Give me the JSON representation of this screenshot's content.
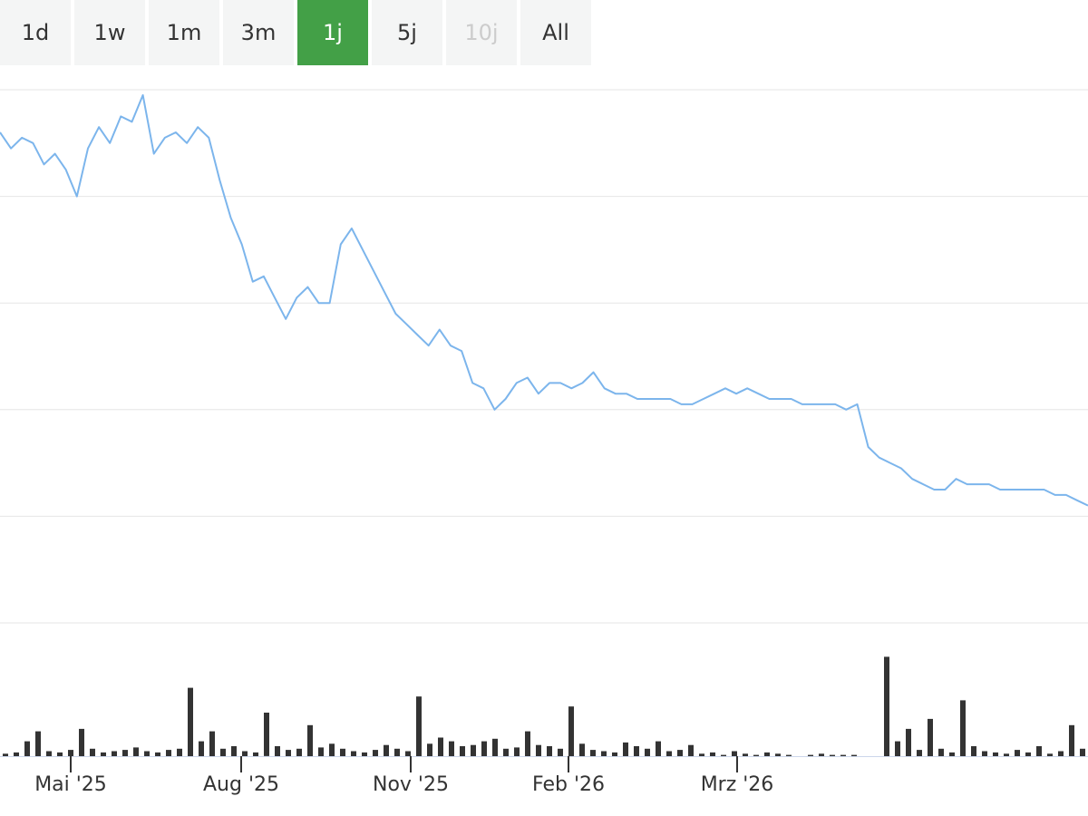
{
  "range_selector": {
    "buttons": [
      {
        "label": "1d",
        "active": false,
        "disabled": false
      },
      {
        "label": "1w",
        "active": false,
        "disabled": false
      },
      {
        "label": "1m",
        "active": false,
        "disabled": false
      },
      {
        "label": "3m",
        "active": false,
        "disabled": false
      },
      {
        "label": "1j",
        "active": true,
        "disabled": false
      },
      {
        "label": "5j",
        "active": false,
        "disabled": false
      },
      {
        "label": "10j",
        "active": false,
        "disabled": true
      },
      {
        "label": "All",
        "active": false,
        "disabled": false
      }
    ]
  },
  "colors": {
    "accent_active": "#43a047",
    "price_line": "#7cb5ec",
    "volume_bars": "#333333",
    "gridline": "#e6e6e6",
    "button_bg": "#f4f5f5"
  },
  "chart_data": [
    {
      "type": "line",
      "title": "",
      "xlabel": "",
      "ylabel": "",
      "ylim": [
        0,
        100
      ],
      "grid": true,
      "legend": "none",
      "x_ticks": [
        "Mai '25",
        "Aug '25",
        "Nov '25",
        "Feb '26",
        "Mrz '26"
      ],
      "series": [
        {
          "values": [
            92,
            89,
            91,
            90,
            86,
            88,
            85,
            80,
            89,
            93,
            90,
            95,
            94,
            99,
            88,
            91,
            92,
            90,
            93,
            91,
            83,
            76,
            71,
            64,
            65,
            61,
            57,
            61,
            63,
            60,
            60,
            71,
            74,
            70,
            66,
            62,
            58,
            56,
            54,
            52,
            55,
            52,
            51,
            45,
            44,
            40,
            42,
            45,
            46,
            43,
            45,
            45,
            44,
            45,
            47,
            44,
            43,
            43,
            42,
            42,
            42,
            42,
            41,
            41,
            42,
            43,
            44,
            43,
            44,
            43,
            42,
            42,
            42,
            41,
            41,
            41,
            41,
            40,
            41,
            33,
            31,
            30,
            29,
            27,
            26,
            25,
            25,
            27,
            26,
            26,
            26,
            25,
            25,
            25,
            25,
            25,
            24,
            24,
            23,
            22
          ]
        }
      ]
    },
    {
      "type": "bar",
      "title": "",
      "xlabel": "",
      "ylabel": "",
      "ylim": [
        0,
        100
      ],
      "series": [
        {
          "values": [
            2,
            3,
            12,
            20,
            4,
            3,
            5,
            22,
            6,
            3,
            4,
            5,
            7,
            4,
            3,
            5,
            6,
            55,
            12,
            20,
            6,
            8,
            4,
            3,
            35,
            8,
            5,
            6,
            25,
            7,
            10,
            6,
            4,
            3,
            5,
            9,
            6,
            4,
            48,
            10,
            15,
            12,
            8,
            9,
            12,
            14,
            6,
            7,
            20,
            9,
            8,
            6,
            40,
            10,
            5,
            4,
            3,
            11,
            8,
            6,
            12,
            4,
            5,
            9,
            2,
            3,
            1,
            4,
            2,
            1,
            3,
            2,
            1,
            0,
            1,
            2,
            1,
            1,
            1,
            0,
            0,
            80,
            12,
            22,
            5,
            30,
            6,
            3,
            45,
            8,
            4,
            3,
            2,
            5,
            3,
            8,
            2,
            4,
            25,
            6
          ]
        }
      ]
    }
  ]
}
